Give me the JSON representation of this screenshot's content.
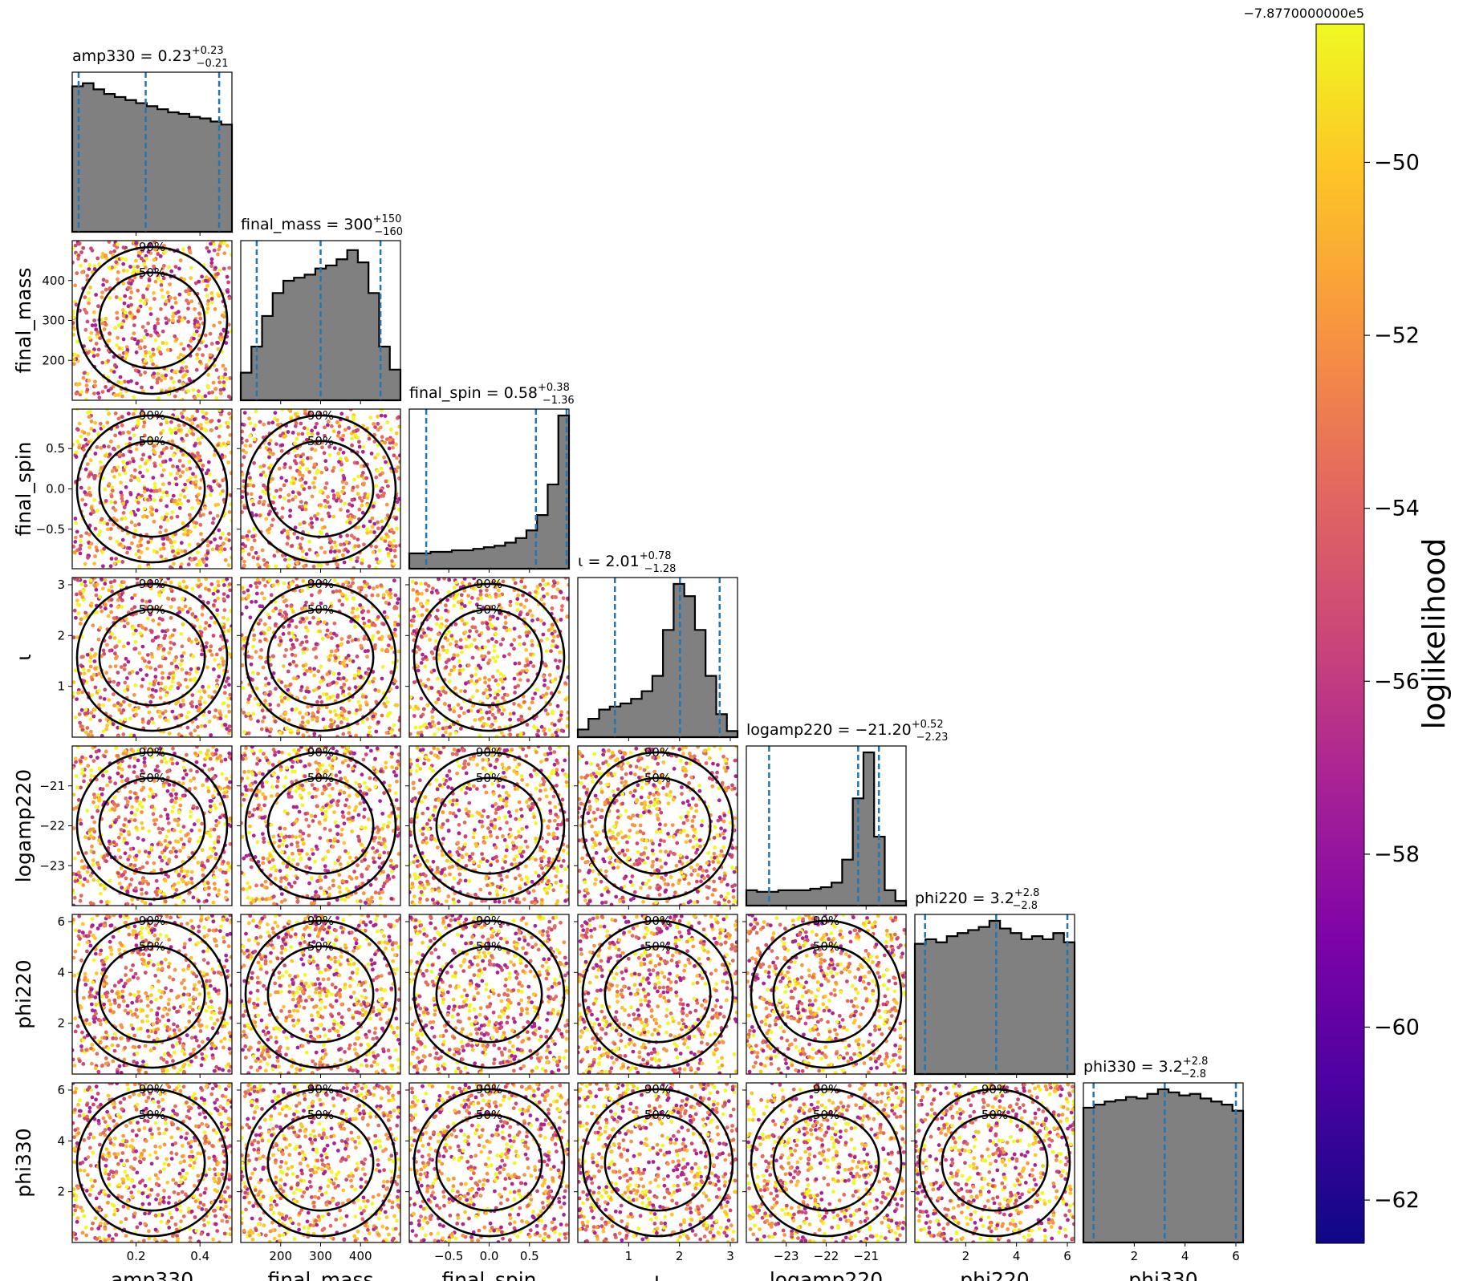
{
  "chart_data": {
    "type": "scatter",
    "variables": [
      {
        "name": "amp330",
        "label": "amp330",
        "range": [
          0.0,
          0.5
        ],
        "ticks": [
          0.2,
          0.4
        ],
        "tick_labels": [
          "0.2",
          "0.4"
        ],
        "median": 0.23,
        "p5": 0.02,
        "p95": 0.46,
        "title_prefix": "amp330 = 0.23",
        "title_sup": "+0.23",
        "title_sub": "−0.21"
      },
      {
        "name": "final_mass",
        "label": "final_mass",
        "range": [
          100,
          500
        ],
        "ticks": [
          200,
          300,
          400
        ],
        "tick_labels": [
          "200",
          "300",
          "400"
        ],
        "median": 300,
        "p5": 140,
        "p95": 450,
        "title_prefix": "final_mass = 300",
        "title_sup": "+150",
        "title_sub": "−160"
      },
      {
        "name": "final_spin",
        "label": "final_spin",
        "range": [
          -0.99,
          0.99
        ],
        "ticks": [
          -0.5,
          0.0,
          0.5
        ],
        "tick_labels": [
          "−0.5",
          "0.0",
          "0.5"
        ],
        "median": 0.58,
        "p5": -0.78,
        "p95": 0.96,
        "title_prefix": "final_spin = 0.58",
        "title_sup": "+0.38",
        "title_sub": "−1.36"
      },
      {
        "name": "iota",
        "label": "ι",
        "range": [
          0.0,
          3.1416
        ],
        "ticks": [
          1,
          2,
          3
        ],
        "tick_labels": [
          "1",
          "2",
          "3"
        ],
        "median": 2.01,
        "p5": 0.73,
        "p95": 2.79,
        "title_prefix": "ι = 2.01",
        "title_sup": "+0.78",
        "title_sub": "−1.28"
      },
      {
        "name": "logamp220",
        "label": "logamp220",
        "range": [
          -24.0,
          -20.0
        ],
        "ticks": [
          -23,
          -22,
          -21
        ],
        "tick_labels": [
          "−23",
          "−22",
          "−21"
        ],
        "median": -21.2,
        "p5": -23.43,
        "p95": -20.68,
        "title_prefix": "logamp220 = −21.20",
        "title_sup": "+0.52",
        "title_sub": "−2.23"
      },
      {
        "name": "phi220",
        "label": "phi220",
        "range": [
          0.0,
          6.2832
        ],
        "ticks": [
          2,
          4,
          6
        ],
        "tick_labels": [
          "2",
          "4",
          "6"
        ],
        "median": 3.2,
        "p5": 0.4,
        "p95": 6.0,
        "title_prefix": "phi220 = 3.2",
        "title_sup": "+2.8",
        "title_sub": "−2.8"
      },
      {
        "name": "phi330",
        "label": "phi330",
        "range": [
          0.0,
          6.2832
        ],
        "ticks": [
          2,
          4,
          6
        ],
        "tick_labels": [
          "2",
          "4",
          "6"
        ],
        "median": 3.2,
        "p5": 0.4,
        "p95": 6.0,
        "title_prefix": "phi330 = 3.2",
        "title_sup": "+2.8",
        "title_sub": "−2.8"
      }
    ],
    "histograms": [
      [
        0.95,
        0.97,
        0.93,
        0.9,
        0.88,
        0.86,
        0.84,
        0.82,
        0.8,
        0.78,
        0.77,
        0.75,
        0.74,
        0.72,
        0.7
      ],
      [
        0.18,
        0.35,
        0.55,
        0.7,
        0.78,
        0.8,
        0.82,
        0.86,
        0.88,
        0.92,
        0.98,
        0.9,
        0.7,
        0.35,
        0.2
      ],
      [
        0.1,
        0.1,
        0.11,
        0.11,
        0.12,
        0.12,
        0.13,
        0.14,
        0.15,
        0.17,
        0.2,
        0.25,
        0.35,
        0.55,
        1.0
      ],
      [
        0.05,
        0.12,
        0.18,
        0.2,
        0.22,
        0.25,
        0.3,
        0.4,
        0.7,
        1.0,
        0.92,
        0.7,
        0.4,
        0.15,
        0.04
      ],
      [
        0.1,
        0.09,
        0.09,
        0.1,
        0.1,
        0.1,
        0.11,
        0.12,
        0.15,
        0.3,
        0.7,
        1.0,
        0.45,
        0.1,
        0.03
      ],
      [
        0.85,
        0.88,
        0.86,
        0.9,
        0.92,
        0.94,
        0.96,
        1.0,
        0.95,
        0.92,
        0.88,
        0.9,
        0.88,
        0.92,
        0.86
      ],
      [
        0.88,
        0.9,
        0.92,
        0.93,
        0.95,
        0.94,
        0.97,
        1.0,
        0.98,
        0.96,
        0.97,
        0.94,
        0.92,
        0.9,
        0.86
      ]
    ],
    "contour_levels": [
      "50%",
      "90%"
    ],
    "colorbar": {
      "label": "loglikelihood",
      "offset_label": "−7.8770000000e5",
      "range": [
        -62.5,
        -48.4
      ],
      "ticks": [
        -50,
        -52,
        -54,
        -56,
        -58,
        -60,
        -62
      ],
      "tick_labels": [
        "−50",
        "−52",
        "−54",
        "−56",
        "−58",
        "−60",
        "−62"
      ],
      "colormap": "plasma"
    },
    "colors": {
      "hist_fill": "#808080",
      "hist_edge": "#000000",
      "quantile_line": "#1f77b4",
      "contour": "#000000"
    }
  }
}
